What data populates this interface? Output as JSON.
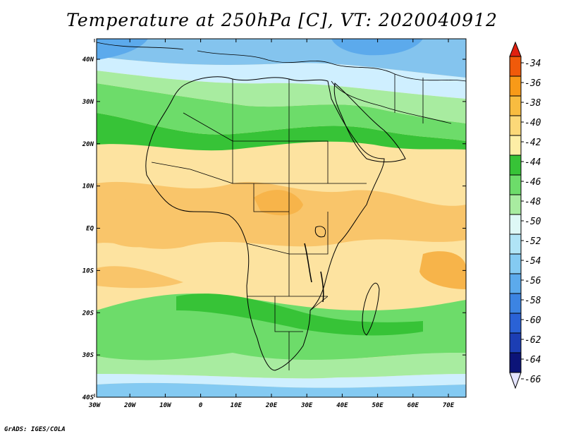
{
  "title": "Temperature at 250hPa [C], VT: 2020040912",
  "footer": "GrADS: IGES/COLA",
  "axes": {
    "lon_labels": [
      "30W",
      "20W",
      "10W",
      "0",
      "10E",
      "20E",
      "30E",
      "40E",
      "50E",
      "60E",
      "70E"
    ],
    "lat_labels": [
      "40N",
      "30N",
      "20N",
      "10N",
      "EQ",
      "10S",
      "20S",
      "30S",
      "40S"
    ]
  },
  "colorbar": {
    "labels": [
      "-34",
      "-36",
      "-38",
      "-40",
      "-42",
      "-44",
      "-46",
      "-48",
      "-50",
      "-52",
      "-54",
      "-56",
      "-58",
      "-60",
      "-62",
      "-64",
      "-66"
    ],
    "colors": [
      "#e02010",
      "#f05a0a",
      "#f89a18",
      "#f8bc40",
      "#fcd878",
      "#fdeea6",
      "#37c337",
      "#6ddc6a",
      "#a8ecA0",
      "#def8f6",
      "#b0e4f6",
      "#84caf2",
      "#5caaec",
      "#3c84e2",
      "#2a62d6",
      "#1c3eb4",
      "#0c1478",
      "#e4e4ff"
    ]
  },
  "map": {
    "background": "#fde3a0",
    "shading": [
      {
        "name": "north-blue",
        "color": "#84c4ee"
      },
      {
        "name": "north-lightblue",
        "color": "#cfefff"
      },
      {
        "name": "north-green",
        "color": "#5fd45c"
      },
      {
        "name": "sahel-darkgreen",
        "color": "#37c337"
      },
      {
        "name": "tropical-orange",
        "color": "#f9c56a"
      },
      {
        "name": "south-green",
        "color": "#5fd45c"
      },
      {
        "name": "south-lightblue",
        "color": "#cfefff"
      }
    ]
  }
}
